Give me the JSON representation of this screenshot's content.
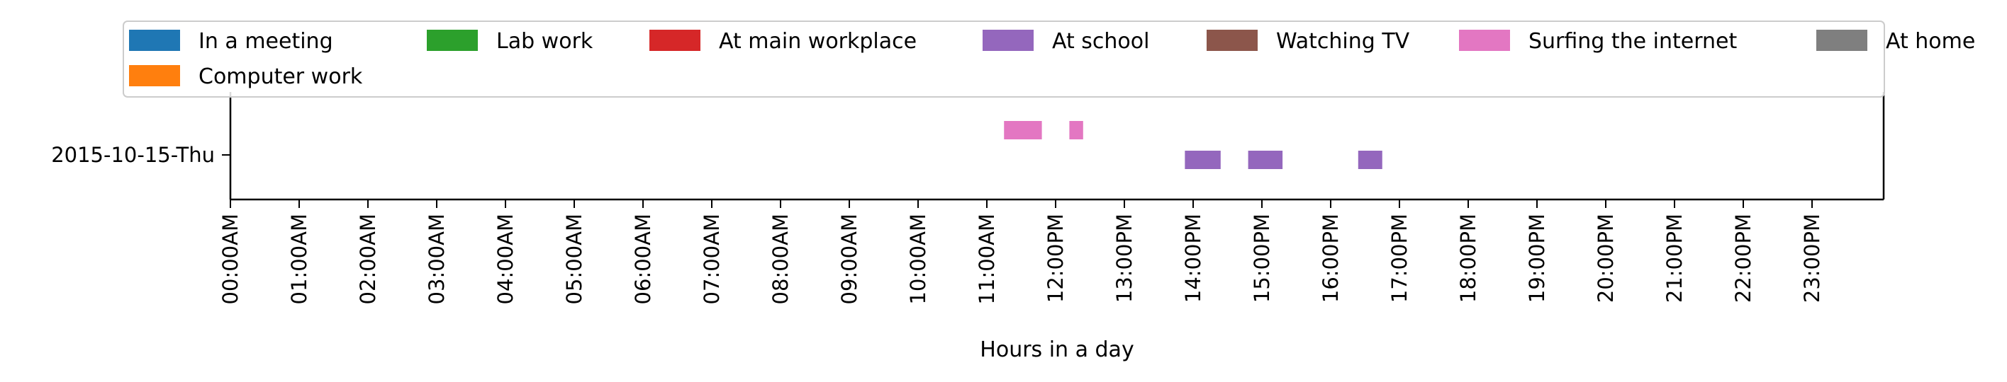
{
  "chart_data": {
    "type": "timeline",
    "xlabel": "Hours in a day",
    "xlim": [
      0,
      24
    ],
    "x_ticks": [
      0,
      1,
      2,
      3,
      4,
      5,
      6,
      7,
      8,
      9,
      10,
      11,
      12,
      13,
      14,
      15,
      16,
      17,
      18,
      19,
      20,
      21,
      22,
      23
    ],
    "x_tick_labels": [
      "00:00AM",
      "01:00AM",
      "02:00AM",
      "03:00AM",
      "04:00AM",
      "05:00AM",
      "06:00AM",
      "07:00AM",
      "08:00AM",
      "09:00AM",
      "10:00AM",
      "11:00AM",
      "12:00PM",
      "13:00PM",
      "14:00PM",
      "15:00PM",
      "16:00PM",
      "17:00PM",
      "18:00PM",
      "19:00PM",
      "20:00PM",
      "21:00PM",
      "22:00PM",
      "23:00PM"
    ],
    "y_categories": [
      "2015-10-15-Thu"
    ],
    "legend_position": "top",
    "legend": [
      {
        "name": "In a meeting",
        "color": "#1f77b4"
      },
      {
        "name": "Lab work",
        "color": "#2ca02c"
      },
      {
        "name": "At main workplace",
        "color": "#d62728"
      },
      {
        "name": "At school",
        "color": "#9467bd"
      },
      {
        "name": "Watching TV",
        "color": "#8c564b"
      },
      {
        "name": "Surfing the internet",
        "color": "#e377c2"
      },
      {
        "name": "At home",
        "color": "#7f7f7f"
      },
      {
        "name": "Computer work",
        "color": "#ff7f0e"
      }
    ],
    "series": [
      {
        "name": "Surfing the internet",
        "color": "#e377c2",
        "lane_offset": 0.5,
        "intervals": [
          [
            11.25,
            11.8
          ],
          [
            12.2,
            12.4
          ]
        ]
      },
      {
        "name": "At school",
        "color": "#9467bd",
        "lane_offset": -0.1,
        "intervals": [
          [
            13.88,
            14.4
          ],
          [
            14.8,
            15.3
          ],
          [
            16.4,
            16.75
          ]
        ]
      }
    ]
  }
}
